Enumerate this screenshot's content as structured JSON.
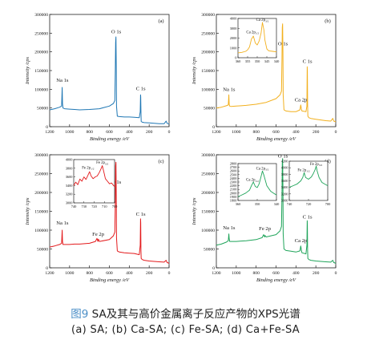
{
  "caption": {
    "fig_num": "图9",
    "title": " SA及其与高价金属离子反应产物的XPS光谱",
    "subtitle": "(a) SA; (b) Ca-SA; (c) Fe-SA; (d) Ca+Fe-SA"
  },
  "chart_data": [
    {
      "type": "line",
      "panel_label": "(a)",
      "color": "#1f77b4",
      "xlabel": "Binding energy /eV",
      "ylabel": "Intensity /cps",
      "xlim": [
        1200,
        0
      ],
      "ylim": [
        0,
        300000
      ],
      "xticks": [
        "1200",
        "1000",
        "800",
        "600",
        "400",
        "200",
        "0"
      ],
      "yticks": [
        "0",
        "50000",
        "100000",
        "150000",
        "200000",
        "250000",
        "300000"
      ],
      "series": [
        {
          "x": [
            1200,
            1150,
            1100,
            1080,
            1074,
            1071,
            1066,
            1050,
            1000,
            950,
            900,
            800,
            700,
            600,
            560,
            545,
            540,
            537,
            534,
            531,
            528,
            520,
            500,
            450,
            400,
            350,
            300,
            290,
            287,
            285,
            283,
            280,
            270,
            250,
            200,
            150,
            100,
            50,
            30,
            20,
            0
          ],
          "y": [
            45000,
            48000,
            52000,
            55000,
            105000,
            62000,
            50000,
            48000,
            47000,
            46000,
            45000,
            46000,
            48000,
            55000,
            62000,
            70000,
            150000,
            225000,
            240000,
            160000,
            55000,
            28000,
            27000,
            26000,
            26000,
            25000,
            24000,
            40000,
            85000,
            80000,
            40000,
            14000,
            12000,
            11000,
            10000,
            9000,
            8000,
            8000,
            15000,
            9000,
            7000
          ]
        }
      ],
      "annotations": [
        {
          "text": "Na 1s",
          "x": 1072,
          "y": 120000
        },
        {
          "text": "O 1s",
          "x": 531,
          "y": 250000
        },
        {
          "text": "C 1s",
          "x": 285,
          "y": 98000
        }
      ]
    },
    {
      "type": "line",
      "panel_label": "(b)",
      "color": "#f2b01e",
      "xlabel": "Binding energy /eV",
      "ylabel": "Intensity /cps",
      "xlim": [
        1200,
        0
      ],
      "ylim": [
        0,
        300000
      ],
      "xticks": [
        "1200",
        "1000",
        "800",
        "600",
        "400",
        "200",
        "0"
      ],
      "yticks": [
        "0",
        "50000",
        "100000",
        "150000",
        "200000",
        "250000",
        "300000"
      ],
      "series": [
        {
          "x": [
            1200,
            1150,
            1100,
            1080,
            1074,
            1071,
            1066,
            1050,
            1000,
            950,
            900,
            800,
            700,
            600,
            560,
            545,
            540,
            537,
            534,
            531,
            528,
            520,
            500,
            450,
            400,
            360,
            352,
            348,
            346,
            340,
            300,
            290,
            287,
            285,
            283,
            280,
            270,
            250,
            200,
            150,
            100,
            50,
            30,
            20,
            0
          ],
          "y": [
            50000,
            52000,
            56000,
            58000,
            85000,
            60000,
            55000,
            54000,
            55000,
            56000,
            57000,
            60000,
            65000,
            75000,
            85000,
            95000,
            180000,
            265000,
            275000,
            200000,
            85000,
            45000,
            42000,
            40000,
            40000,
            45000,
            58000,
            52000,
            48000,
            42000,
            40000,
            55000,
            160000,
            150000,
            60000,
            28000,
            24000,
            22000,
            20000,
            18000,
            16000,
            15000,
            22000,
            15000,
            13000
          ]
        }
      ],
      "annotations": [
        {
          "text": "Na 1s",
          "x": 1072,
          "y": 95000
        },
        {
          "text": "O 1s",
          "x": 531,
          "y": 218000
        },
        {
          "text": "Ca 2p",
          "x": 350,
          "y": 68000
        },
        {
          "text": "C 1s",
          "x": 285,
          "y": 170000
        }
      ],
      "inset": {
        "title": "Ca 2p",
        "xlim": [
          360,
          340
        ],
        "ylim": [
          0,
          4000
        ],
        "xticks": [
          "360",
          "355",
          "350",
          "345",
          "340"
        ],
        "yticks": [
          "0",
          "1000",
          "2000",
          "3000",
          "4000"
        ],
        "x": [
          360,
          358,
          356,
          355,
          354,
          353.5,
          353,
          352,
          351,
          350,
          349,
          348,
          347.3,
          346.5,
          346,
          345,
          344,
          342,
          340
        ],
        "y": [
          500,
          550,
          650,
          800,
          1100,
          1500,
          1900,
          2200,
          1500,
          1300,
          1700,
          2500,
          3600,
          2800,
          1800,
          900,
          700,
          650,
          600
        ],
        "annotations": [
          {
            "text": "Ca 2p",
            "sub": "1/2",
            "x": 352.4,
            "y": 2500
          },
          {
            "text": "Ca 2p",
            "sub": "3/2",
            "x": 347.3,
            "y": 3750
          }
        ]
      }
    },
    {
      "type": "line",
      "panel_label": "(c)",
      "color": "#e31a1c",
      "xlabel": "Binding energy /eV",
      "ylabel": "Intensity /cps",
      "xlim": [
        1200,
        0
      ],
      "ylim": [
        0,
        300000
      ],
      "xticks": [
        "1200",
        "1000",
        "800",
        "600",
        "400",
        "200",
        "0"
      ],
      "yticks": [
        "0",
        "50000",
        "100000",
        "150000",
        "200000",
        "250000",
        "300000"
      ],
      "series": [
        {
          "x": [
            1200,
            1150,
            1100,
            1080,
            1074,
            1071,
            1066,
            1050,
            1000,
            950,
            900,
            800,
            740,
            725,
            715,
            710,
            700,
            600,
            560,
            545,
            540,
            537,
            534,
            531,
            528,
            520,
            500,
            450,
            400,
            350,
            300,
            290,
            287,
            285,
            283,
            280,
            270,
            250,
            200,
            150,
            100,
            50,
            30,
            20,
            0
          ],
          "y": [
            55000,
            58000,
            62000,
            65000,
            100000,
            70000,
            62000,
            62000,
            62000,
            63000,
            63000,
            65000,
            70000,
            78000,
            70000,
            76000,
            70000,
            75000,
            85000,
            95000,
            170000,
            270000,
            280000,
            190000,
            80000,
            45000,
            42000,
            40000,
            39000,
            38000,
            35000,
            60000,
            130000,
            120000,
            45000,
            25000,
            22000,
            20000,
            18000,
            17000,
            16000,
            15000,
            20000,
            14000,
            12000
          ]
        }
      ],
      "annotations": [
        {
          "text": "Na 1s",
          "x": 1072,
          "y": 115000
        },
        {
          "text": "Fe 2p",
          "x": 712,
          "y": 85000
        },
        {
          "text": "O 1s",
          "x": 531,
          "y": 223000
        },
        {
          "text": "C 1s",
          "x": 285,
          "y": 138000
        }
      ],
      "inset": {
        "title": "Fe 2p",
        "xlim": [
          740,
          700
        ],
        "ylim": [
          3000,
          4000
        ],
        "xticks": [
          "740",
          "730",
          "720",
          "710",
          "700"
        ],
        "yticks": [
          "3000",
          "3200",
          "3400",
          "3600",
          "3800",
          "4000"
        ],
        "x": [
          740,
          738,
          736,
          734,
          732,
          730,
          728,
          726,
          724.5,
          723,
          721,
          719,
          717,
          715,
          713,
          712,
          711,
          710,
          709,
          707,
          705,
          703,
          701,
          700
        ],
        "y": [
          3400,
          3480,
          3420,
          3550,
          3500,
          3600,
          3540,
          3640,
          3720,
          3620,
          3560,
          3600,
          3620,
          3700,
          3800,
          3860,
          3760,
          3660,
          3560,
          3500,
          3440,
          3460,
          3400,
          3380
        ],
        "annotations": [
          {
            "text": "Fe 2p",
            "sub": "1/2",
            "x": 726,
            "y": 3790
          },
          {
            "text": "Fe 2p",
            "sub": "3/2",
            "x": 712,
            "y": 3905
          }
        ]
      }
    },
    {
      "type": "line",
      "panel_label": "(d)",
      "color": "#1fa45a",
      "xlabel": "Binding energy /eV",
      "ylabel": "Intensity /cps",
      "xlim": [
        1200,
        0
      ],
      "ylim": [
        0,
        300000
      ],
      "xticks": [
        "1200",
        "1000",
        "800",
        "600",
        "400",
        "200",
        "0"
      ],
      "yticks": [
        "0",
        "50000",
        "100000",
        "150000",
        "200000",
        "250000",
        "300000"
      ],
      "series": [
        {
          "x": [
            1200,
            1150,
            1100,
            1080,
            1074,
            1071,
            1066,
            1050,
            1000,
            950,
            900,
            800,
            740,
            725,
            715,
            710,
            700,
            600,
            560,
            545,
            540,
            537,
            534,
            531,
            528,
            520,
            500,
            450,
            400,
            360,
            352,
            348,
            346,
            340,
            300,
            290,
            287,
            285,
            283,
            280,
            270,
            250,
            200,
            150,
            100,
            50,
            30,
            20,
            0
          ],
          "y": [
            60000,
            63000,
            68000,
            72000,
            90000,
            78000,
            70000,
            70000,
            70000,
            71000,
            72000,
            75000,
            80000,
            88000,
            82000,
            86000,
            82000,
            88000,
            98000,
            110000,
            190000,
            280000,
            290000,
            210000,
            90000,
            50000,
            46000,
            44000,
            42000,
            45000,
            58000,
            52000,
            48000,
            40000,
            37000,
            60000,
            125000,
            115000,
            45000,
            25000,
            22000,
            20000,
            18000,
            17000,
            16000,
            15000,
            20000,
            14000,
            12000
          ]
        }
      ],
      "annotations": [
        {
          "text": "Na 1s",
          "x": 1072,
          "y": 102000
        },
        {
          "text": "Fe 2p",
          "x": 712,
          "y": 100000
        },
        {
          "text": "O 1s",
          "x": 531,
          "y": 293000
        },
        {
          "text": "Ca 2p",
          "x": 350,
          "y": 68000
        },
        {
          "text": "C 1s",
          "x": 285,
          "y": 131000
        }
      ],
      "insets": [
        {
          "title": "Ca 2p",
          "xlim": [
            360,
            340
          ],
          "ylim": [
            1800,
            2800
          ],
          "xticks": [
            "360",
            "350",
            "340"
          ],
          "yticks": [
            "1800",
            "1900",
            "2000",
            "2100",
            "2200",
            "2300",
            "2400",
            "2500",
            "2600",
            "2700",
            "2800"
          ],
          "x": [
            360,
            358,
            356,
            354,
            353,
            352,
            351,
            350,
            349,
            348,
            347.3,
            346.5,
            345,
            343,
            341,
            340
          ],
          "y": [
            1900,
            1950,
            2000,
            2080,
            2200,
            2300,
            2180,
            2150,
            2250,
            2450,
            2600,
            2480,
            2200,
            2050,
            1980,
            1950
          ],
          "annotations": [
            {
              "text": "Ca 2p",
              "sub": "1/2",
              "x": 352.5,
              "y": 2330
            },
            {
              "text": "Ca 2p",
              "sub": "3/2",
              "x": 347.3,
              "y": 2640
            }
          ]
        },
        {
          "title": "Fe 2p",
          "xlim": [
            740,
            700
          ],
          "ylim": [
            3000,
            4200
          ],
          "xticks": [
            "740",
            "720",
            "700"
          ],
          "yticks": [
            "3000",
            "3200",
            "3400",
            "3600",
            "3800",
            "4000",
            "4200"
          ],
          "x": [
            740,
            736,
            732,
            728,
            726,
            724.5,
            723,
            720,
            717,
            715,
            713,
            712,
            711,
            709,
            706,
            703,
            700
          ],
          "y": [
            3400,
            3450,
            3500,
            3600,
            3700,
            3850,
            3700,
            3650,
            3720,
            3820,
            3950,
            4050,
            3900,
            3700,
            3550,
            3500,
            3450
          ],
          "annotations": [
            {
              "text": "Fe 2p",
              "sub": "1/2",
              "x": 725,
              "y": 3900
            },
            {
              "text": "Fe 2p",
              "sub": "3/2",
              "x": 712,
              "y": 4080
            }
          ]
        }
      ]
    }
  ]
}
